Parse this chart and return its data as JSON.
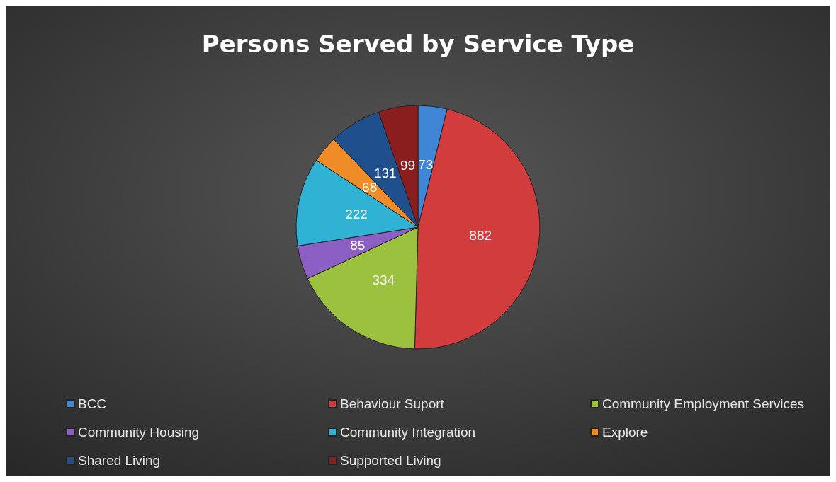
{
  "chart_data": {
    "type": "pie",
    "title": "Persons Served by Service Type",
    "categories": [
      "BCC",
      "Behaviour Suport",
      "Community Employment Services",
      "Community Housing",
      "Community Integration",
      "Explore",
      "Shared Living",
      "Supported Living"
    ],
    "values": [
      73,
      882,
      334,
      85,
      222,
      68,
      131,
      99
    ],
    "colors": [
      "#3f86d6",
      "#d23c3c",
      "#9bc13f",
      "#8b5fc4",
      "#2fb2d4",
      "#f08c28",
      "#1f4f8c",
      "#8a1e1e"
    ],
    "data_labels": true,
    "legend": "bottom"
  }
}
